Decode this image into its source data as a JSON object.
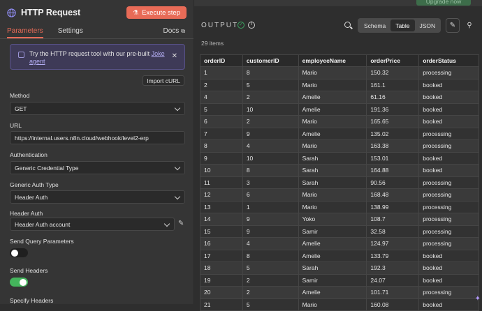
{
  "node": {
    "title": "HTTP Request",
    "execute_label": "Execute step"
  },
  "tabs": [
    {
      "label": "Parameters",
      "active": true
    },
    {
      "label": "Settings",
      "active": false
    }
  ],
  "docs_label": "Docs",
  "notice": {
    "text": "Try the HTTP request tool with our pre-built ",
    "link": "Joke agent"
  },
  "import_label": "Import cURL",
  "fields": {
    "method_label": "Method",
    "method_value": "GET",
    "url_label": "URL",
    "url_value": "https://internal.users.n8n.cloud/webhook/level2-erp",
    "auth_label": "Authentication",
    "auth_value": "Generic Credential Type",
    "generic_auth_label": "Generic Auth Type",
    "generic_auth_value": "Header Auth",
    "header_auth_label": "Header Auth",
    "header_auth_value": "Header Auth account",
    "send_query_label": "Send Query Parameters",
    "send_query_on": false,
    "send_headers_label": "Send Headers",
    "send_headers_on": true,
    "specify_headers_label": "Specify Headers"
  },
  "output": {
    "title": "OUTPUT",
    "upgrade_label": "Upgrade now",
    "views": [
      "Schema",
      "Table",
      "JSON"
    ],
    "selected_view": "Table",
    "item_count": "29 items",
    "columns": [
      "orderID",
      "customerID",
      "employeeName",
      "orderPrice",
      "orderStatus"
    ],
    "rows": [
      [
        "1",
        "8",
        "Mario",
        "150.32",
        "processing"
      ],
      [
        "2",
        "5",
        "Mario",
        "161.1",
        "booked"
      ],
      [
        "4",
        "2",
        "Amelie",
        "61.16",
        "booked"
      ],
      [
        "5",
        "10",
        "Amelie",
        "191.36",
        "booked"
      ],
      [
        "6",
        "2",
        "Mario",
        "165.65",
        "booked"
      ],
      [
        "7",
        "9",
        "Amelie",
        "135.02",
        "processing"
      ],
      [
        "8",
        "4",
        "Mario",
        "163.38",
        "processing"
      ],
      [
        "9",
        "10",
        "Sarah",
        "153.01",
        "booked"
      ],
      [
        "10",
        "8",
        "Sarah",
        "164.88",
        "booked"
      ],
      [
        "11",
        "3",
        "Sarah",
        "90.56",
        "processing"
      ],
      [
        "12",
        "6",
        "Mario",
        "168.48",
        "processing"
      ],
      [
        "13",
        "1",
        "Mario",
        "138.99",
        "processing"
      ],
      [
        "14",
        "9",
        "Yoko",
        "108.7",
        "processing"
      ],
      [
        "15",
        "9",
        "Samir",
        "32.58",
        "processing"
      ],
      [
        "16",
        "4",
        "Amelie",
        "124.97",
        "processing"
      ],
      [
        "17",
        "8",
        "Amelie",
        "133.79",
        "booked"
      ],
      [
        "18",
        "5",
        "Sarah",
        "192.3",
        "booked"
      ],
      [
        "19",
        "2",
        "Samir",
        "24.07",
        "booked"
      ],
      [
        "20",
        "2",
        "Amelie",
        "101.71",
        "processing"
      ],
      [
        "21",
        "5",
        "Mario",
        "160.08",
        "booked"
      ]
    ]
  }
}
